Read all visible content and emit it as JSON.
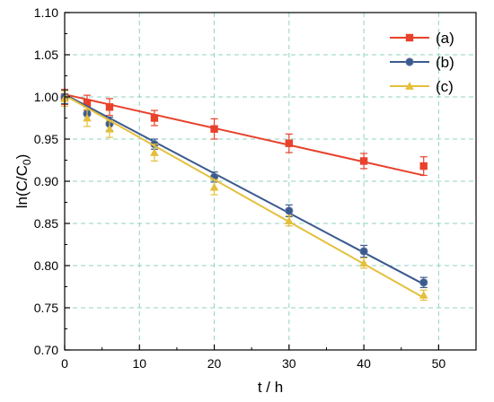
{
  "chart_data": {
    "type": "line",
    "title": "",
    "xlabel": "t / h",
    "ylabel_main": "ln(C/C",
    "ylabel_sub": "0",
    "ylabel_close": ")",
    "xlim": [
      0,
      55
    ],
    "ylim": [
      0.7,
      1.1
    ],
    "xticks": [
      0,
      10,
      20,
      30,
      40,
      50
    ],
    "yticks": [
      0.7,
      0.75,
      0.8,
      0.85,
      0.9,
      0.95,
      1.0,
      1.05,
      1.1
    ],
    "grid": true,
    "legend_position": "top-right",
    "series": [
      {
        "name": "(a)",
        "color": "#e8412c",
        "marker": "square",
        "x": [
          0,
          3,
          6,
          12,
          20,
          30,
          40,
          48
        ],
        "y": [
          1.0,
          0.993,
          0.988,
          0.975,
          0.962,
          0.945,
          0.924,
          0.918
        ],
        "err": [
          0.009,
          0.009,
          0.01,
          0.009,
          0.012,
          0.011,
          0.009,
          0.011
        ],
        "fit": [
          [
            0,
            1.003
          ],
          [
            48,
            0.907
          ]
        ]
      },
      {
        "name": "(b)",
        "color": "#3b5a8e",
        "marker": "circle",
        "x": [
          0,
          3,
          6,
          12,
          20,
          30,
          40,
          48
        ],
        "y": [
          1.0,
          0.98,
          0.968,
          0.944,
          0.905,
          0.865,
          0.817,
          0.78
        ],
        "err": [
          0.008,
          0.008,
          0.008,
          0.006,
          0.006,
          0.007,
          0.007,
          0.006
        ],
        "fit": [
          [
            0,
            1.003
          ],
          [
            48,
            0.778
          ]
        ]
      },
      {
        "name": "(c)",
        "color": "#e4bf3c",
        "marker": "triangle",
        "x": [
          0,
          3,
          6,
          12,
          20,
          30,
          40,
          48
        ],
        "y": [
          0.998,
          0.975,
          0.962,
          0.934,
          0.893,
          0.853,
          0.803,
          0.765
        ],
        "err": [
          0.009,
          0.01,
          0.01,
          0.01,
          0.009,
          0.006,
          0.006,
          0.006
        ],
        "fit": [
          [
            0,
            1.002
          ],
          [
            48,
            0.762
          ]
        ]
      }
    ]
  }
}
